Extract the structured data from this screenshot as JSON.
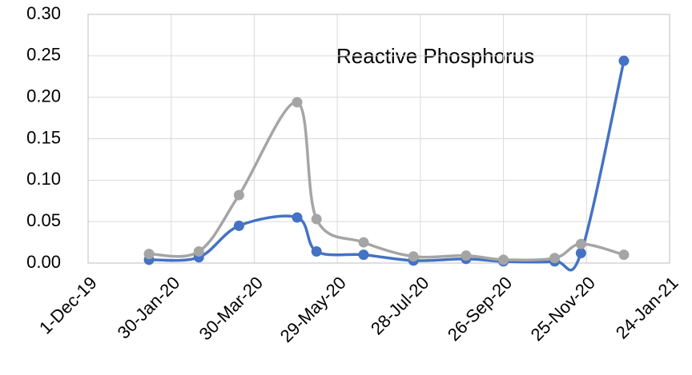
{
  "chart_data": {
    "type": "line",
    "annotation": "Reactive Phosphorus",
    "x": [
      "2020-01-14",
      "2020-02-19",
      "2020-03-19",
      "2020-04-30",
      "2020-05-14",
      "2020-06-17",
      "2020-07-23",
      "2020-08-30",
      "2020-09-26",
      "2020-11-02",
      "2020-11-21",
      "2020-12-22"
    ],
    "series": [
      {
        "color": "#4472c4",
        "values": [
          0.004,
          0.007,
          0.045,
          0.055,
          0.014,
          0.01,
          0.003,
          0.005,
          0.002,
          0.002,
          0.012,
          0.244
        ]
      },
      {
        "color": "#a5a5a5",
        "values": [
          0.011,
          0.014,
          0.082,
          0.194,
          0.053,
          0.025,
          0.008,
          0.009,
          0.004,
          0.006,
          0.023,
          0.01
        ]
      }
    ],
    "xlim": [
      "2019-12-01",
      "2021-01-24"
    ],
    "xticks": [
      {
        "value": "2019-12-01",
        "label": "1-Dec-19"
      },
      {
        "value": "2020-01-30",
        "label": "30-Jan-20"
      },
      {
        "value": "2020-03-30",
        "label": "30-Mar-20"
      },
      {
        "value": "2020-05-29",
        "label": "29-May-20"
      },
      {
        "value": "2020-07-28",
        "label": "28-Jul-20"
      },
      {
        "value": "2020-09-26",
        "label": "26-Sep-20"
      },
      {
        "value": "2020-11-25",
        "label": "25-Nov-20"
      },
      {
        "value": "2021-01-24",
        "label": "24-Jan-21"
      }
    ],
    "ylim": [
      0,
      0.3
    ],
    "yticks": [
      {
        "value": 0,
        "label": "0.00"
      },
      0.05,
      {
        "value": 0.1,
        "label": "0.10"
      },
      0.15,
      {
        "value": 0.2,
        "label": "0.20"
      },
      0.25,
      {
        "value": 0.3,
        "label": "0.30"
      }
    ],
    "grid": true
  }
}
